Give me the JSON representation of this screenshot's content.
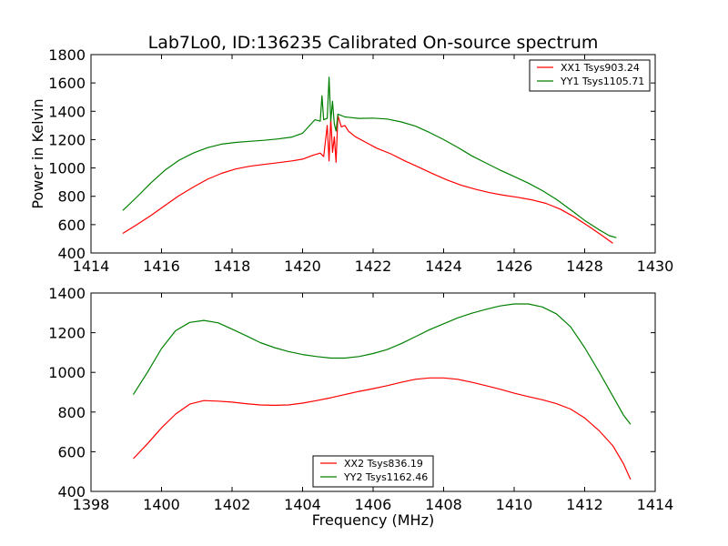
{
  "chart_data": [
    {
      "type": "line",
      "title": "Lab7Lo0, ID:136235 Calibrated On-source spectrum",
      "xlabel": "",
      "ylabel": "Power in Kelvin",
      "xlim": [
        1414,
        1430
      ],
      "ylim": [
        400,
        1800
      ],
      "xticks": [
        1414,
        1416,
        1418,
        1420,
        1422,
        1424,
        1426,
        1428,
        1430
      ],
      "yticks": [
        400,
        600,
        800,
        1000,
        1200,
        1400,
        1600,
        1800
      ],
      "grid": false,
      "legend_position": "top-right",
      "series": [
        {
          "name": "XX1 Tsys903.24",
          "color": "#ff0000",
          "points": [
            [
              1414.9,
              538
            ],
            [
              1415.3,
              600
            ],
            [
              1415.7,
              665
            ],
            [
              1416.1,
              735
            ],
            [
              1416.5,
              805
            ],
            [
              1416.9,
              865
            ],
            [
              1417.3,
              920
            ],
            [
              1417.7,
              962
            ],
            [
              1418.1,
              993
            ],
            [
              1418.5,
              1012
            ],
            [
              1418.9,
              1025
            ],
            [
              1419.3,
              1037
            ],
            [
              1419.7,
              1050
            ],
            [
              1420.0,
              1062
            ],
            [
              1420.3,
              1090
            ],
            [
              1420.5,
              1105
            ],
            [
              1420.6,
              1080
            ],
            [
              1420.7,
              1300
            ],
            [
              1420.75,
              1050
            ],
            [
              1420.8,
              1350
            ],
            [
              1420.85,
              1110
            ],
            [
              1420.9,
              1220
            ],
            [
              1420.95,
              1040
            ],
            [
              1421.0,
              1370
            ],
            [
              1421.1,
              1290
            ],
            [
              1421.2,
              1300
            ],
            [
              1421.3,
              1260
            ],
            [
              1421.5,
              1220
            ],
            [
              1421.8,
              1180
            ],
            [
              1422.1,
              1140
            ],
            [
              1422.5,
              1100
            ],
            [
              1422.9,
              1050
            ],
            [
              1423.3,
              1005
            ],
            [
              1423.7,
              958
            ],
            [
              1424.1,
              915
            ],
            [
              1424.5,
              878
            ],
            [
              1424.9,
              850
            ],
            [
              1425.3,
              826
            ],
            [
              1425.7,
              808
            ],
            [
              1426.1,
              793
            ],
            [
              1426.5,
              775
            ],
            [
              1426.9,
              750
            ],
            [
              1427.3,
              710
            ],
            [
              1427.7,
              655
            ],
            [
              1428.1,
              590
            ],
            [
              1428.5,
              522
            ],
            [
              1428.8,
              468
            ]
          ]
        },
        {
          "name": "YY1 Tsys1105.71",
          "color": "#008000",
          "points": [
            [
              1414.9,
              700
            ],
            [
              1415.3,
              795
            ],
            [
              1415.7,
              895
            ],
            [
              1416.1,
              985
            ],
            [
              1416.5,
              1055
            ],
            [
              1416.9,
              1105
            ],
            [
              1417.3,
              1143
            ],
            [
              1417.7,
              1168
            ],
            [
              1418.1,
              1180
            ],
            [
              1418.5,
              1188
            ],
            [
              1418.9,
              1195
            ],
            [
              1419.3,
              1205
            ],
            [
              1419.7,
              1218
            ],
            [
              1420.0,
              1245
            ],
            [
              1420.2,
              1300
            ],
            [
              1420.35,
              1340
            ],
            [
              1420.5,
              1330
            ],
            [
              1420.55,
              1510
            ],
            [
              1420.6,
              1340
            ],
            [
              1420.7,
              1350
            ],
            [
              1420.75,
              1640
            ],
            [
              1420.8,
              1330
            ],
            [
              1420.85,
              1470
            ],
            [
              1420.9,
              1310
            ],
            [
              1420.95,
              1260
            ],
            [
              1421.0,
              1380
            ],
            [
              1421.2,
              1360
            ],
            [
              1421.6,
              1350
            ],
            [
              1422.0,
              1352
            ],
            [
              1422.4,
              1345
            ],
            [
              1422.8,
              1325
            ],
            [
              1423.2,
              1295
            ],
            [
              1423.6,
              1250
            ],
            [
              1424.0,
              1200
            ],
            [
              1424.4,
              1145
            ],
            [
              1424.8,
              1085
            ],
            [
              1425.2,
              1035
            ],
            [
              1425.6,
              985
            ],
            [
              1426.0,
              940
            ],
            [
              1426.4,
              893
            ],
            [
              1426.8,
              840
            ],
            [
              1427.2,
              778
            ],
            [
              1427.6,
              705
            ],
            [
              1428.0,
              630
            ],
            [
              1428.4,
              565
            ],
            [
              1428.7,
              522
            ],
            [
              1428.9,
              508
            ]
          ]
        }
      ]
    },
    {
      "type": "line",
      "title": "",
      "xlabel": "Frequency (MHz)",
      "ylabel": "",
      "xlim": [
        1398,
        1414
      ],
      "ylim": [
        400,
        1400
      ],
      "xticks": [
        1398,
        1400,
        1402,
        1404,
        1406,
        1408,
        1410,
        1412,
        1414
      ],
      "yticks": [
        400,
        600,
        800,
        1000,
        1200,
        1400
      ],
      "grid": false,
      "legend_position": "bottom-center",
      "series": [
        {
          "name": "XX2 Tsys836.19",
          "color": "#ff0000",
          "points": [
            [
              1399.2,
              565
            ],
            [
              1399.6,
              640
            ],
            [
              1400.0,
              720
            ],
            [
              1400.4,
              790
            ],
            [
              1400.8,
              840
            ],
            [
              1401.2,
              858
            ],
            [
              1401.6,
              855
            ],
            [
              1402.0,
              850
            ],
            [
              1402.4,
              842
            ],
            [
              1402.8,
              836
            ],
            [
              1403.2,
              834
            ],
            [
              1403.6,
              836
            ],
            [
              1404.0,
              845
            ],
            [
              1404.4,
              858
            ],
            [
              1404.8,
              872
            ],
            [
              1405.2,
              888
            ],
            [
              1405.6,
              904
            ],
            [
              1406.0,
              918
            ],
            [
              1406.4,
              933
            ],
            [
              1406.8,
              950
            ],
            [
              1407.2,
              965
            ],
            [
              1407.6,
              972
            ],
            [
              1408.0,
              972
            ],
            [
              1408.4,
              965
            ],
            [
              1408.8,
              950
            ],
            [
              1409.2,
              933
            ],
            [
              1409.6,
              915
            ],
            [
              1410.0,
              895
            ],
            [
              1410.4,
              878
            ],
            [
              1410.8,
              862
            ],
            [
              1411.2,
              842
            ],
            [
              1411.6,
              815
            ],
            [
              1412.0,
              770
            ],
            [
              1412.4,
              708
            ],
            [
              1412.8,
              630
            ],
            [
              1413.1,
              540
            ],
            [
              1413.3,
              460
            ]
          ]
        },
        {
          "name": "YY2 Tsys1162.46",
          "color": "#008000",
          "points": [
            [
              1399.2,
              888
            ],
            [
              1399.6,
              1000
            ],
            [
              1400.0,
              1120
            ],
            [
              1400.4,
              1210
            ],
            [
              1400.8,
              1252
            ],
            [
              1401.2,
              1262
            ],
            [
              1401.6,
              1250
            ],
            [
              1402.0,
              1218
            ],
            [
              1402.4,
              1185
            ],
            [
              1402.8,
              1150
            ],
            [
              1403.2,
              1125
            ],
            [
              1403.6,
              1105
            ],
            [
              1404.0,
              1090
            ],
            [
              1404.4,
              1080
            ],
            [
              1404.8,
              1072
            ],
            [
              1405.2,
              1072
            ],
            [
              1405.6,
              1080
            ],
            [
              1406.0,
              1095
            ],
            [
              1406.4,
              1115
            ],
            [
              1406.8,
              1145
            ],
            [
              1407.2,
              1180
            ],
            [
              1407.6,
              1215
            ],
            [
              1408.0,
              1245
            ],
            [
              1408.4,
              1275
            ],
            [
              1408.8,
              1298
            ],
            [
              1409.2,
              1318
            ],
            [
              1409.6,
              1335
            ],
            [
              1410.0,
              1345
            ],
            [
              1410.4,
              1345
            ],
            [
              1410.8,
              1330
            ],
            [
              1411.2,
              1295
            ],
            [
              1411.6,
              1230
            ],
            [
              1412.0,
              1125
            ],
            [
              1412.4,
              1005
            ],
            [
              1412.8,
              880
            ],
            [
              1413.1,
              785
            ],
            [
              1413.3,
              738
            ]
          ]
        }
      ]
    }
  ]
}
